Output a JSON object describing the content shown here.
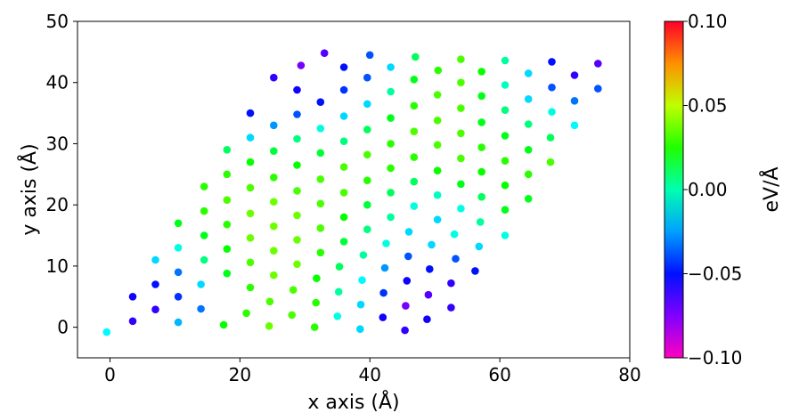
{
  "chart_data": {
    "type": "scatter",
    "title": "",
    "xlabel": "x axis (Å)",
    "ylabel": "y axis (Å)",
    "xlim": [
      -5,
      80
    ],
    "ylim": [
      -5,
      50
    ],
    "xticks": [
      0,
      20,
      40,
      60,
      80
    ],
    "yticks": [
      0,
      10,
      20,
      30,
      40,
      50
    ],
    "grid": false,
    "colorbar": {
      "label": "eV/Å",
      "range": [
        -0.1,
        0.1
      ],
      "ticks": [
        "0.10",
        "0.05",
        "0.00",
        "−0.05",
        "−0.10"
      ],
      "tick_values": [
        0.1,
        0.05,
        0.0,
        -0.05,
        -0.1
      ],
      "colormap": "gist_rainbow"
    },
    "grid_model": {
      "origin": [
        -0.5,
        -0.8
      ],
      "a": [
        3.5,
        2.0
      ],
      "b": [
        3.6,
        6.0
      ],
      "j_range": [
        0,
        7
      ],
      "i_range": [
        0,
        13
      ]
    },
    "points": [
      {
        "x": 18.0,
        "y": 29.0,
        "v": 0.01
      },
      {
        "x": 21.6,
        "y": 31.0,
        "v": -0.02
      },
      {
        "x": 25.2,
        "y": 33.0,
        "v": -0.03
      },
      {
        "x": 28.8,
        "y": 34.8,
        "v": -0.04
      },
      {
        "x": 32.4,
        "y": 36.8,
        "v": -0.05
      },
      {
        "x": 36.0,
        "y": 38.8,
        "v": -0.045
      },
      {
        "x": 39.6,
        "y": 40.8,
        "v": -0.04
      },
      {
        "x": 43.2,
        "y": 42.5,
        "v": -0.02
      },
      {
        "x": 21.6,
        "y": 35.0,
        "v": -0.05
      },
      {
        "x": 25.2,
        "y": 40.8,
        "v": -0.06
      },
      {
        "x": 28.8,
        "y": 38.8,
        "v": -0.055
      },
      {
        "x": 29.4,
        "y": 42.8,
        "v": -0.07
      },
      {
        "x": 33.0,
        "y": 44.8,
        "v": -0.065
      },
      {
        "x": 36.0,
        "y": 42.5,
        "v": -0.05
      },
      {
        "x": 40.0,
        "y": 44.5,
        "v": -0.04
      },
      {
        "x": 47.0,
        "y": 44.2,
        "v": 0.01
      },
      {
        "x": 50.5,
        "y": 42.0,
        "v": 0.03
      },
      {
        "x": 54.0,
        "y": 43.8,
        "v": 0.035
      },
      {
        "x": 57.2,
        "y": 41.8,
        "v": 0.025
      },
      {
        "x": 60.8,
        "y": 43.6,
        "v": 0.0
      },
      {
        "x": 64.4,
        "y": 41.5,
        "v": -0.02
      },
      {
        "x": 68.0,
        "y": 43.4,
        "v": -0.05
      },
      {
        "x": 71.5,
        "y": 41.2,
        "v": -0.06
      },
      {
        "x": 75.1,
        "y": 43.1,
        "v": -0.065
      },
      {
        "x": 75.1,
        "y": 39.0,
        "v": -0.04
      },
      {
        "x": 71.5,
        "y": 37.0,
        "v": -0.035
      },
      {
        "x": 71.5,
        "y": 33.0,
        "v": -0.015
      },
      {
        "x": 68.0,
        "y": 35.2,
        "v": -0.01
      },
      {
        "x": 68.0,
        "y": 39.2,
        "v": -0.04
      },
      {
        "x": 64.4,
        "y": 37.3,
        "v": -0.02
      },
      {
        "x": 67.8,
        "y": 31.0,
        "v": 0.01
      },
      {
        "x": 67.8,
        "y": 27.0,
        "v": 0.035
      },
      {
        "x": 64.4,
        "y": 29.0,
        "v": 0.02
      },
      {
        "x": 64.4,
        "y": 33.2,
        "v": 0.005
      },
      {
        "x": 64.4,
        "y": 25.0,
        "v": 0.03
      },
      {
        "x": 64.4,
        "y": 21.0,
        "v": 0.02
      },
      {
        "x": 60.8,
        "y": 15.0,
        "v": -0.01
      },
      {
        "x": 56.2,
        "y": 9.2,
        "v": -0.05
      },
      {
        "x": 56.8,
        "y": 13.2,
        "v": -0.02
      },
      {
        "x": 57.0,
        "y": 17.2,
        "v": 0.0
      },
      {
        "x": 60.8,
        "y": 19.2,
        "v": 0.02
      },
      {
        "x": 52.5,
        "y": 3.2,
        "v": -0.06
      },
      {
        "x": 52.5,
        "y": 7.2,
        "v": -0.06
      },
      {
        "x": 53.2,
        "y": 11.2,
        "v": -0.04
      },
      {
        "x": 53.0,
        "y": 15.2,
        "v": -0.01
      },
      {
        "x": 48.8,
        "y": 1.3,
        "v": -0.055
      },
      {
        "x": 49.0,
        "y": 5.3,
        "v": -0.065
      },
      {
        "x": 49.2,
        "y": 9.5,
        "v": -0.05
      },
      {
        "x": 49.5,
        "y": 13.5,
        "v": -0.02
      },
      {
        "x": 45.4,
        "y": -0.5,
        "v": -0.06
      },
      {
        "x": 45.5,
        "y": 3.5,
        "v": -0.07
      },
      {
        "x": 45.7,
        "y": 7.6,
        "v": -0.055
      },
      {
        "x": 45.9,
        "y": 11.6,
        "v": -0.04
      },
      {
        "x": 46.0,
        "y": 15.6,
        "v": -0.02
      },
      {
        "x": 42.0,
        "y": 1.6,
        "v": -0.055
      },
      {
        "x": 42.1,
        "y": 5.6,
        "v": -0.045
      },
      {
        "x": 42.3,
        "y": 9.7,
        "v": -0.03
      },
      {
        "x": 42.5,
        "y": 13.7,
        "v": -0.01
      },
      {
        "x": 38.5,
        "y": -0.3,
        "v": -0.02
      },
      {
        "x": 38.6,
        "y": 3.7,
        "v": -0.02
      },
      {
        "x": 38.8,
        "y": 7.7,
        "v": -0.015
      },
      {
        "x": 39.0,
        "y": 11.8,
        "v": 0.0
      },
      {
        "x": 35.0,
        "y": 1.8,
        "v": -0.01
      },
      {
        "x": 35.2,
        "y": 5.8,
        "v": 0.0
      },
      {
        "x": 35.3,
        "y": 9.9,
        "v": 0.01
      },
      {
        "x": 31.5,
        "y": 0.0,
        "v": 0.03
      },
      {
        "x": 31.7,
        "y": 4.0,
        "v": 0.03
      },
      {
        "x": 31.8,
        "y": 8.0,
        "v": 0.025
      },
      {
        "x": 28.0,
        "y": 2.0,
        "v": 0.035
      },
      {
        "x": 28.2,
        "y": 6.1,
        "v": 0.035
      },
      {
        "x": 24.5,
        "y": 0.2,
        "v": 0.04
      },
      {
        "x": 24.6,
        "y": 4.2,
        "v": 0.035
      },
      {
        "x": 21.0,
        "y": 2.3,
        "v": 0.03
      },
      {
        "x": 17.5,
        "y": 0.4,
        "v": 0.025
      },
      {
        "x": 10.5,
        "y": 0.8,
        "v": -0.025
      },
      {
        "x": 7.0,
        "y": 2.9,
        "v": -0.06
      },
      {
        "x": 3.5,
        "y": 1.0,
        "v": -0.06
      },
      {
        "x": -0.5,
        "y": -0.8,
        "v": -0.015
      },
      {
        "x": 3.5,
        "y": 5.0,
        "v": -0.055
      },
      {
        "x": 7.0,
        "y": 7.0,
        "v": -0.05
      },
      {
        "x": 7.0,
        "y": 11.0,
        "v": -0.02
      },
      {
        "x": 10.5,
        "y": 13.0,
        "v": -0.01
      },
      {
        "x": 10.5,
        "y": 17.0,
        "v": 0.02
      },
      {
        "x": 14.5,
        "y": 23.0,
        "v": 0.03
      },
      {
        "x": 18.0,
        "y": 25.0,
        "v": 0.03
      },
      {
        "x": 21.6,
        "y": 27.0,
        "v": 0.025
      },
      {
        "x": 25.2,
        "y": 28.8,
        "v": 0.015
      },
      {
        "x": 28.8,
        "y": 30.8,
        "v": 0.005
      },
      {
        "x": 32.4,
        "y": 32.5,
        "v": -0.01
      },
      {
        "x": 36.0,
        "y": 34.5,
        "v": -0.02
      },
      {
        "x": 39.6,
        "y": 36.5,
        "v": -0.02
      },
      {
        "x": 43.2,
        "y": 38.5,
        "v": 0.0
      },
      {
        "x": 46.8,
        "y": 40.5,
        "v": 0.02
      },
      {
        "x": 43.2,
        "y": 34.2,
        "v": 0.02
      },
      {
        "x": 46.8,
        "y": 36.2,
        "v": 0.03
      },
      {
        "x": 50.4,
        "y": 38.0,
        "v": 0.035
      },
      {
        "x": 54.0,
        "y": 40.0,
        "v": 0.035
      },
      {
        "x": 57.2,
        "y": 37.8,
        "v": 0.02
      },
      {
        "x": 60.8,
        "y": 39.6,
        "v": -0.005
      },
      {
        "x": 60.8,
        "y": 35.5,
        "v": 0.005
      },
      {
        "x": 57.2,
        "y": 33.5,
        "v": 0.02
      },
      {
        "x": 54.0,
        "y": 35.8,
        "v": 0.035
      },
      {
        "x": 50.4,
        "y": 33.8,
        "v": 0.035
      },
      {
        "x": 46.8,
        "y": 32.0,
        "v": 0.035
      },
      {
        "x": 43.2,
        "y": 30.0,
        "v": 0.03
      },
      {
        "x": 39.6,
        "y": 32.3,
        "v": 0.01
      },
      {
        "x": 36.0,
        "y": 30.4,
        "v": 0.005
      },
      {
        "x": 32.4,
        "y": 28.5,
        "v": 0.015
      },
      {
        "x": 28.8,
        "y": 26.5,
        "v": 0.025
      },
      {
        "x": 25.2,
        "y": 24.5,
        "v": 0.03
      },
      {
        "x": 21.6,
        "y": 22.8,
        "v": 0.035
      },
      {
        "x": 18.0,
        "y": 20.8,
        "v": 0.035
      },
      {
        "x": 14.5,
        "y": 19.0,
        "v": 0.03
      },
      {
        "x": 14.5,
        "y": 15.0,
        "v": 0.02
      },
      {
        "x": 10.5,
        "y": 9.0,
        "v": -0.035
      },
      {
        "x": 10.5,
        "y": 5.0,
        "v": -0.045
      },
      {
        "x": 14.0,
        "y": 3.0,
        "v": -0.035
      },
      {
        "x": 14.0,
        "y": 7.0,
        "v": -0.02
      },
      {
        "x": 14.5,
        "y": 11.0,
        "v": 0.005
      },
      {
        "x": 18.0,
        "y": 8.8,
        "v": 0.02
      },
      {
        "x": 18.0,
        "y": 12.8,
        "v": 0.025
      },
      {
        "x": 18.0,
        "y": 16.8,
        "v": 0.03
      },
      {
        "x": 21.6,
        "y": 6.5,
        "v": 0.03
      },
      {
        "x": 21.6,
        "y": 10.6,
        "v": 0.035
      },
      {
        "x": 21.6,
        "y": 14.6,
        "v": 0.04
      },
      {
        "x": 21.6,
        "y": 18.6,
        "v": 0.04
      },
      {
        "x": 25.2,
        "y": 8.5,
        "v": 0.04
      },
      {
        "x": 25.2,
        "y": 12.5,
        "v": 0.04
      },
      {
        "x": 25.2,
        "y": 16.5,
        "v": 0.04
      },
      {
        "x": 25.2,
        "y": 20.5,
        "v": 0.04
      },
      {
        "x": 28.8,
        "y": 10.3,
        "v": 0.04
      },
      {
        "x": 28.8,
        "y": 14.3,
        "v": 0.04
      },
      {
        "x": 28.8,
        "y": 18.3,
        "v": 0.04
      },
      {
        "x": 28.8,
        "y": 22.3,
        "v": 0.035
      },
      {
        "x": 32.4,
        "y": 12.2,
        "v": 0.03
      },
      {
        "x": 32.4,
        "y": 16.2,
        "v": 0.035
      },
      {
        "x": 32.4,
        "y": 20.2,
        "v": 0.035
      },
      {
        "x": 32.4,
        "y": 24.2,
        "v": 0.035
      },
      {
        "x": 36.0,
        "y": 14.0,
        "v": 0.015
      },
      {
        "x": 36.0,
        "y": 18.0,
        "v": 0.025
      },
      {
        "x": 36.0,
        "y": 22.0,
        "v": 0.035
      },
      {
        "x": 36.0,
        "y": 26.2,
        "v": 0.035
      },
      {
        "x": 39.6,
        "y": 16.0,
        "v": 0.005
      },
      {
        "x": 39.6,
        "y": 20.0,
        "v": 0.015
      },
      {
        "x": 39.6,
        "y": 24.0,
        "v": 0.03
      },
      {
        "x": 39.6,
        "y": 28.2,
        "v": 0.035
      },
      {
        "x": 43.2,
        "y": 18.0,
        "v": 0.0
      },
      {
        "x": 43.2,
        "y": 22.0,
        "v": 0.01
      },
      {
        "x": 43.2,
        "y": 26.0,
        "v": 0.03
      },
      {
        "x": 46.8,
        "y": 19.8,
        "v": -0.01
      },
      {
        "x": 46.8,
        "y": 23.8,
        "v": 0.01
      },
      {
        "x": 46.8,
        "y": 27.8,
        "v": 0.03
      },
      {
        "x": 50.4,
        "y": 17.6,
        "v": -0.02
      },
      {
        "x": 50.4,
        "y": 21.6,
        "v": -0.005
      },
      {
        "x": 50.4,
        "y": 25.6,
        "v": 0.025
      },
      {
        "x": 50.4,
        "y": 29.8,
        "v": 0.035
      },
      {
        "x": 54.0,
        "y": 19.4,
        "v": -0.01
      },
      {
        "x": 54.0,
        "y": 23.4,
        "v": 0.02
      },
      {
        "x": 54.0,
        "y": 27.6,
        "v": 0.035
      },
      {
        "x": 54.0,
        "y": 31.7,
        "v": 0.035
      },
      {
        "x": 57.2,
        "y": 21.3,
        "v": 0.01
      },
      {
        "x": 57.2,
        "y": 25.4,
        "v": 0.025
      },
      {
        "x": 57.2,
        "y": 29.4,
        "v": 0.03
      },
      {
        "x": 60.8,
        "y": 23.2,
        "v": 0.025
      },
      {
        "x": 60.8,
        "y": 27.2,
        "v": 0.03
      },
      {
        "x": 60.8,
        "y": 31.3,
        "v": 0.02
      }
    ]
  }
}
